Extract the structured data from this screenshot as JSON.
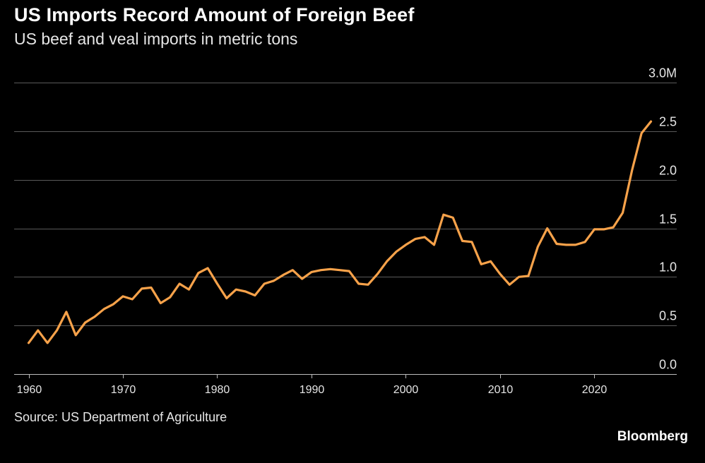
{
  "header": {
    "title": "US Imports Record Amount of Foreign Beef",
    "subtitle": "US beef and veal imports in metric tons"
  },
  "footer": {
    "source": "Source: US Department of Agriculture",
    "brand": "Bloomberg"
  },
  "colors": {
    "background": "#000000",
    "line": "#f7a24a",
    "grid": "#5a5a5a",
    "text": "#e6e6e6"
  },
  "chart_data": {
    "type": "line",
    "title": "US Imports Record Amount of Foreign Beef",
    "subtitle": "US beef and veal imports in metric tons",
    "xlabel": "",
    "ylabel": "",
    "xlim": [
      1960,
      2026
    ],
    "ylim": [
      0,
      3.0
    ],
    "y_unit": "M",
    "y_ticks": [
      {
        "value": 0.0,
        "label": "0.0"
      },
      {
        "value": 0.5,
        "label": "0.5"
      },
      {
        "value": 1.0,
        "label": "1.0"
      },
      {
        "value": 1.5,
        "label": "1.5"
      },
      {
        "value": 2.0,
        "label": "2.0"
      },
      {
        "value": 2.5,
        "label": "2.5"
      },
      {
        "value": 3.0,
        "label": "3.0M"
      }
    ],
    "x_ticks": [
      {
        "value": 1960,
        "label": "1960"
      },
      {
        "value": 1970,
        "label": "1970"
      },
      {
        "value": 1980,
        "label": "1980"
      },
      {
        "value": 1990,
        "label": "1990"
      },
      {
        "value": 2000,
        "label": "2000"
      },
      {
        "value": 2010,
        "label": "2010"
      },
      {
        "value": 2020,
        "label": "2020"
      }
    ],
    "grid": true,
    "y_axis_side": "right",
    "legend": "none",
    "series": [
      {
        "color": "#f7a24a",
        "x": [
          1960,
          1961,
          1962,
          1963,
          1964,
          1965,
          1966,
          1967,
          1968,
          1969,
          1970,
          1971,
          1972,
          1973,
          1974,
          1975,
          1976,
          1977,
          1978,
          1979,
          1980,
          1981,
          1982,
          1983,
          1984,
          1985,
          1986,
          1987,
          1988,
          1989,
          1990,
          1991,
          1992,
          1993,
          1994,
          1995,
          1996,
          1997,
          1998,
          1999,
          2000,
          2001,
          2002,
          2003,
          2004,
          2005,
          2006,
          2007,
          2008,
          2009,
          2010,
          2011,
          2012,
          2013,
          2014,
          2015,
          2016,
          2017,
          2018,
          2019,
          2020,
          2021,
          2022,
          2023,
          2024,
          2025,
          2026
        ],
        "values": [
          0.32,
          0.45,
          0.32,
          0.45,
          0.64,
          0.4,
          0.53,
          0.59,
          0.67,
          0.72,
          0.8,
          0.77,
          0.88,
          0.89,
          0.73,
          0.79,
          0.93,
          0.87,
          1.04,
          1.09,
          0.93,
          0.78,
          0.87,
          0.85,
          0.81,
          0.93,
          0.96,
          1.02,
          1.07,
          0.98,
          1.05,
          1.07,
          1.08,
          1.07,
          1.06,
          0.93,
          0.92,
          1.03,
          1.16,
          1.26,
          1.33,
          1.39,
          1.41,
          1.33,
          1.64,
          1.61,
          1.37,
          1.36,
          1.13,
          1.16,
          1.03,
          0.92,
          1.0,
          1.01,
          1.31,
          1.5,
          1.34,
          1.33,
          1.33,
          1.36,
          1.49,
          1.49,
          1.51,
          1.66,
          2.1,
          2.48,
          2.6
        ]
      }
    ],
    "source": "Source: US Department of Agriculture"
  }
}
